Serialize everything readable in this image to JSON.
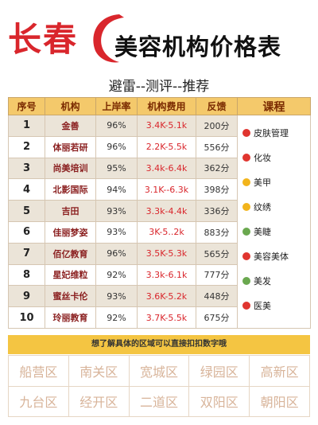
{
  "header": {
    "city": "长春",
    "title": "美容机构价格表",
    "subtitle": "避雷--测评--推荐"
  },
  "table": {
    "headers": {
      "no": "序号",
      "name": "机构",
      "rate": "上岸率",
      "fee": "机构费用",
      "feedback": "反馈",
      "course": "课程"
    },
    "rows": [
      {
        "no": "1",
        "name": "金善",
        "rate": "96%",
        "fee": "3.4K-5.1k",
        "feedback": "200分"
      },
      {
        "no": "2",
        "name": "体丽若研",
        "rate": "96%",
        "fee": "2.2K-5.5k",
        "feedback": "556分"
      },
      {
        "no": "3",
        "name": "尚美培训",
        "rate": "95%",
        "fee": "3.4k-6.4k",
        "feedback": "362分"
      },
      {
        "no": "4",
        "name": "北影国际",
        "rate": "94%",
        "fee": "3.1K--6.3k",
        "feedback": "398分"
      },
      {
        "no": "5",
        "name": "吉田",
        "rate": "93%",
        "fee": "3.3k-4.4k",
        "feedback": "336分"
      },
      {
        "no": "6",
        "name": "佳丽梦姿",
        "rate": "93%",
        "fee": "3K-5..2k",
        "feedback": "883分"
      },
      {
        "no": "7",
        "name": "佰亿教育",
        "rate": "96%",
        "fee": "3.5K-5.3k",
        "feedback": "565分"
      },
      {
        "no": "8",
        "name": "星妃维粒",
        "rate": "92%",
        "fee": "3.3k-6.1k",
        "feedback": "777分"
      },
      {
        "no": "9",
        "name": "蜜丝卡伦",
        "rate": "93%",
        "fee": "3.6K-5.2k",
        "feedback": "448分"
      },
      {
        "no": "10",
        "name": "玲丽教育",
        "rate": "92%",
        "fee": "3.7K-5.5k",
        "feedback": "675分"
      }
    ],
    "courses": [
      {
        "label": "皮肤管理",
        "color": "#e0352f"
      },
      {
        "label": "化妆",
        "color": "#e0352f"
      },
      {
        "label": "美甲",
        "color": "#f2b41c"
      },
      {
        "label": "纹绣",
        "color": "#f2b41c"
      },
      {
        "label": "美睫",
        "color": "#6aa84f"
      },
      {
        "label": "美容美体",
        "color": "#e0352f"
      },
      {
        "label": "美发",
        "color": "#6aa84f"
      },
      {
        "label": "医美",
        "color": "#e0352f"
      }
    ]
  },
  "banner": "想了解具体的区域可以直接扣扣数字哦",
  "districts": [
    "船营区",
    "南关区",
    "宽城区",
    "绿园区",
    "高新区",
    "九台区",
    "经开区",
    "二道区",
    "双阳区",
    "朝阳区"
  ],
  "colors": {
    "brand_red": "#d9262c",
    "header_gold": "#f4c96b",
    "banner_yellow": "#f4c542"
  }
}
